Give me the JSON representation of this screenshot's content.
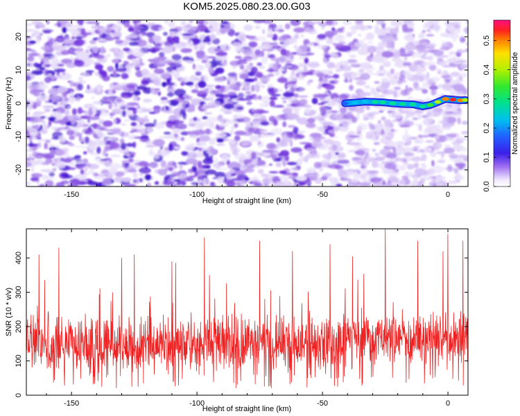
{
  "title": "KOM5.2025.080.23.00.G03",
  "colors": {
    "spec_low": "#e6dcf5",
    "spec_mid": "#8a4de0",
    "spec_high": "#5a1fd0",
    "snr_line": "#ee2222",
    "frame": "#000000"
  },
  "chart_data": [
    {
      "type": "heatmap",
      "title": "",
      "xlabel": "Height of straight line (km)",
      "ylabel": "Frequency (Hz)",
      "xlim": [
        -168,
        8
      ],
      "ylim": [
        -25,
        25
      ],
      "x_ticks": [
        -150,
        -100,
        -50,
        0
      ],
      "y_ticks": [
        -20,
        -10,
        0,
        10,
        20
      ],
      "x_tick_labels": [
        "-150",
        "-100",
        "-50",
        "0"
      ],
      "y_tick_labels": [
        "-20",
        "-10",
        "0",
        "10",
        "20"
      ],
      "colorbar": {
        "label": "Normalized spectral amplitude",
        "range": [
          0.0,
          0.57
        ],
        "ticks": [
          0.0,
          0.1,
          0.2,
          0.3,
          0.4,
          0.5
        ],
        "tick_labels": [
          "0.0",
          "0.1",
          "0.2",
          "0.3",
          "0.4",
          "0.5"
        ]
      },
      "trace": {
        "description": "strong echo ridge near 0 Hz",
        "x": [
          -41,
          -37,
          -33,
          -29,
          -26,
          -22,
          -18,
          -14,
          -10,
          -7,
          -4,
          -1,
          2,
          5,
          7
        ],
        "y": [
          0.0,
          0.2,
          0.5,
          0.4,
          0.3,
          0.0,
          -0.2,
          -0.3,
          -0.9,
          -0.5,
          0.4,
          1.3,
          1.1,
          0.9,
          1.0
        ],
        "amplitude": [
          0.15,
          0.2,
          0.22,
          0.27,
          0.3,
          0.3,
          0.28,
          0.3,
          0.32,
          0.35,
          0.4,
          0.5,
          0.55,
          0.5,
          0.45
        ]
      }
    },
    {
      "type": "line",
      "title": "",
      "xlabel": "Height of straight line (km)",
      "ylabel": "SNR (10 * v/v)",
      "xlim": [
        -168,
        8
      ],
      "ylim": [
        0,
        485
      ],
      "x_ticks": [
        -150,
        -100,
        -50,
        0
      ],
      "y_ticks": [
        0,
        100,
        200,
        300,
        400
      ],
      "x_tick_labels": [
        "-150",
        "-100",
        "-50",
        "0"
      ],
      "y_tick_labels": [
        "0",
        "100",
        "200",
        "300",
        "400"
      ],
      "series": [
        {
          "color": "#ee2222",
          "stats": {
            "mean": 150,
            "spread": 55,
            "max": 485,
            "min": 20
          },
          "sample_count": 1400,
          "peaks": [
            {
              "x": -163,
              "y": 410
            },
            {
              "x": -155,
              "y": 430
            },
            {
              "x": -130,
              "y": 400
            },
            {
              "x": -125,
              "y": 410
            },
            {
              "x": -110,
              "y": 390
            },
            {
              "x": -97,
              "y": 460
            },
            {
              "x": -75,
              "y": 450
            },
            {
              "x": -62,
              "y": 420
            },
            {
              "x": -47,
              "y": 440
            },
            {
              "x": -38,
              "y": 405
            },
            {
              "x": -25,
              "y": 485
            },
            {
              "x": -12,
              "y": 450
            },
            {
              "x": -2,
              "y": 420
            },
            {
              "x": 0,
              "y": 470
            },
            {
              "x": 6,
              "y": 450
            }
          ]
        }
      ]
    }
  ]
}
